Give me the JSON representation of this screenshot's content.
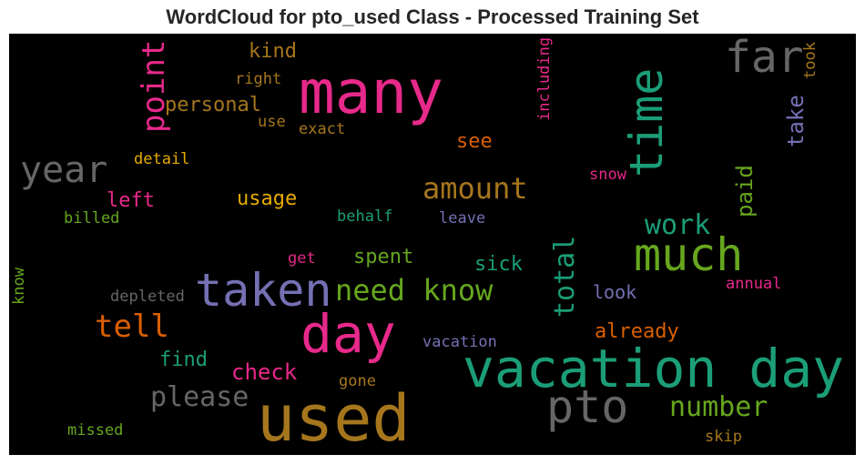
{
  "chart_data": {
    "type": "wordcloud",
    "title": "WordCloud for pto_used Class - Processed Training Set",
    "background": "#000000",
    "words": [
      {
        "text": "vacation day",
        "color": "#1b9e77"
      },
      {
        "text": "used",
        "color": "#a6761d"
      },
      {
        "text": "many",
        "color": "#e7298a"
      },
      {
        "text": "much",
        "color": "#66a61e"
      },
      {
        "text": "taken",
        "color": "#7570b3"
      },
      {
        "text": "day",
        "color": "#e7298a"
      },
      {
        "text": "time",
        "color": "#1b9e77"
      },
      {
        "text": "far",
        "color": "#666666"
      },
      {
        "text": "pto",
        "color": "#666666"
      },
      {
        "text": "year",
        "color": "#666666"
      },
      {
        "text": "amount",
        "color": "#a6761d"
      },
      {
        "text": "need know",
        "color": "#66a61e"
      },
      {
        "text": "point",
        "color": "#e7298a"
      },
      {
        "text": "tell",
        "color": "#d95f02"
      },
      {
        "text": "number",
        "color": "#66a61e"
      },
      {
        "text": "please",
        "color": "#666666"
      },
      {
        "text": "total",
        "color": "#1b9e77"
      },
      {
        "text": "work",
        "color": "#1b9e77"
      },
      {
        "text": "take",
        "color": "#7570b3"
      },
      {
        "text": "paid",
        "color": "#66a61e"
      },
      {
        "text": "check",
        "color": "#e7298a"
      },
      {
        "text": "personal",
        "color": "#a6761d"
      },
      {
        "text": "see",
        "color": "#d95f02"
      },
      {
        "text": "left",
        "color": "#e7298a"
      },
      {
        "text": "usage",
        "color": "#e6ab02"
      },
      {
        "text": "kind",
        "color": "#a6761d"
      },
      {
        "text": "sick",
        "color": "#1b9e77"
      },
      {
        "text": "spent",
        "color": "#66a61e"
      },
      {
        "text": "already",
        "color": "#d95f02"
      },
      {
        "text": "find",
        "color": "#1b9e77"
      },
      {
        "text": "look",
        "color": "#7570b3"
      },
      {
        "text": "right",
        "color": "#a6761d"
      },
      {
        "text": "exact",
        "color": "#a6761d"
      },
      {
        "text": "use",
        "color": "#a6761d"
      },
      {
        "text": "detail",
        "color": "#e6ab02"
      },
      {
        "text": "billed",
        "color": "#66a61e"
      },
      {
        "text": "behalf",
        "color": "#1b9e77"
      },
      {
        "text": "leave",
        "color": "#7570b3"
      },
      {
        "text": "snow",
        "color": "#e7298a"
      },
      {
        "text": "get",
        "color": "#e7298a"
      },
      {
        "text": "depleted",
        "color": "#666666"
      },
      {
        "text": "annual",
        "color": "#e7298a"
      },
      {
        "text": "vacation",
        "color": "#7570b3"
      },
      {
        "text": "gone",
        "color": "#a6761d"
      },
      {
        "text": "missed",
        "color": "#66a61e"
      },
      {
        "text": "skip",
        "color": "#a6761d"
      },
      {
        "text": "including",
        "color": "#e7298a"
      },
      {
        "text": "took",
        "color": "#a6761d"
      },
      {
        "text": "know",
        "color": "#66a61e"
      }
    ]
  }
}
